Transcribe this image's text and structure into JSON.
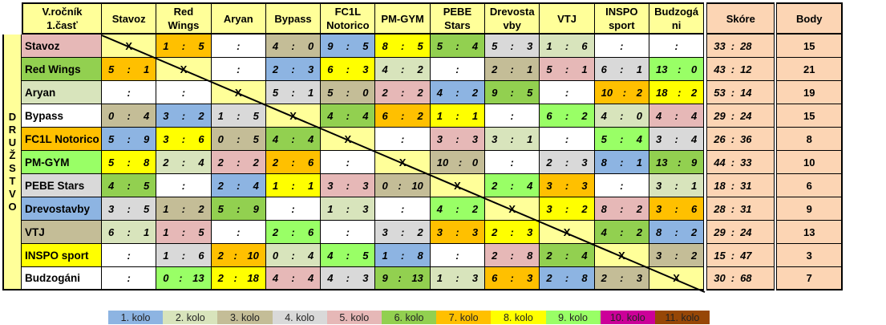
{
  "header": {
    "title_line1": "V.ročník",
    "title_line2": "1.časť",
    "columns": [
      [
        "Stavoz"
      ],
      [
        "Red",
        "Wings"
      ],
      [
        "Aryan"
      ],
      [
        "Bypass"
      ],
      [
        "FC1L",
        "Notorico"
      ],
      [
        "PM-GYM"
      ],
      [
        "PEBE",
        "Stars"
      ],
      [
        "Drevosta",
        "vby"
      ],
      [
        "VTJ"
      ],
      [
        "INSPO",
        "sport"
      ],
      [
        "Budzogá",
        "ni"
      ]
    ],
    "score_label": "Skóre",
    "points_label": "Body"
  },
  "side_label": [
    "D",
    "R",
    "U",
    "Ž",
    "S",
    "T",
    "V",
    "O"
  ],
  "diag_mark": "X",
  "colors": {
    "1": "#8DB4E2",
    "2": "#D8E4BC",
    "3": "#C4BD97",
    "4": "#D9D9D9",
    "5": "#E6B8B7",
    "6": "#92D050",
    "7": "#FFC000",
    "8": "#FFFF00",
    "9": "#99FF66",
    "10": "#CC0099",
    "11": "#974706",
    "none": "#FFFFFF"
  },
  "rows": [
    {
      "name": "Stavoz",
      "kolo": "5",
      "cells": [
        null,
        [
          "1",
          "5",
          "7"
        ],
        [],
        [
          "4",
          "0",
          "3"
        ],
        [
          "9",
          "5",
          "1"
        ],
        [
          "8",
          "5",
          "8"
        ],
        [
          "5",
          "4",
          "6"
        ],
        [
          "5",
          "3",
          "4"
        ],
        [
          "1",
          "6",
          "2"
        ],
        [],
        []
      ],
      "score": [
        "33",
        "28"
      ],
      "points": "15"
    },
    {
      "name": "Red Wings",
      "kolo": "6",
      "cells": [
        [
          "5",
          "1",
          "7"
        ],
        null,
        [],
        [
          "2",
          "3",
          "1"
        ],
        [
          "6",
          "3",
          "8"
        ],
        [
          "4",
          "2",
          "2"
        ],
        [],
        [
          "2",
          "1",
          "3"
        ],
        [
          "5",
          "1",
          "5"
        ],
        [
          "6",
          "1",
          "4"
        ],
        [
          "13",
          "0",
          "9"
        ]
      ],
      "score": [
        "43",
        "12"
      ],
      "points": "21"
    },
    {
      "name": "Aryan",
      "kolo": "2",
      "cells": [
        [],
        [],
        null,
        [
          "5",
          "1",
          "4"
        ],
        [
          "5",
          "0",
          "3"
        ],
        [
          "2",
          "2",
          "5"
        ],
        [
          "4",
          "2",
          "1"
        ],
        [
          "9",
          "5",
          "6"
        ],
        [],
        [
          "10",
          "2",
          "7"
        ],
        [
          "18",
          "2",
          "8"
        ]
      ],
      "score": [
        "53",
        "14"
      ],
      "points": "19"
    },
    {
      "name": "Bypass",
      "kolo": "none",
      "cells": [
        [
          "0",
          "4",
          "3"
        ],
        [
          "3",
          "2",
          "1"
        ],
        [
          "1",
          "5",
          "4"
        ],
        null,
        [
          "4",
          "4",
          "6"
        ],
        [
          "6",
          "2",
          "7"
        ],
        [
          "1",
          "1",
          "8"
        ],
        [],
        [
          "6",
          "2",
          "9"
        ],
        [
          "4",
          "0",
          "2"
        ],
        [
          "4",
          "4",
          "5"
        ]
      ],
      "score": [
        "29",
        "24"
      ],
      "points": "15"
    },
    {
      "name": "FC1L Notorico",
      "kolo": "7",
      "cells": [
        [
          "5",
          "9",
          "1"
        ],
        [
          "3",
          "6",
          "8"
        ],
        [
          "0",
          "5",
          "3"
        ],
        [
          "4",
          "4",
          "6"
        ],
        null,
        [],
        [
          "3",
          "3",
          "5"
        ],
        [
          "3",
          "1",
          "2"
        ],
        [],
        [
          "5",
          "4",
          "9"
        ],
        [
          "3",
          "4",
          "4"
        ]
      ],
      "score": [
        "26",
        "36"
      ],
      "points": "8"
    },
    {
      "name": "PM-GYM",
      "kolo": "9",
      "cells": [
        [
          "5",
          "8",
          "8"
        ],
        [
          "2",
          "4",
          "2"
        ],
        [
          "2",
          "2",
          "5"
        ],
        [
          "2",
          "6",
          "7"
        ],
        [],
        null,
        [
          "10",
          "0",
          "3"
        ],
        [],
        [
          "2",
          "3",
          "4"
        ],
        [
          "8",
          "1",
          "1"
        ],
        [
          "13",
          "9",
          "6"
        ]
      ],
      "score": [
        "44",
        "33"
      ],
      "points": "10"
    },
    {
      "name": "PEBE Stars",
      "kolo": "4",
      "cells": [
        [
          "4",
          "5",
          "6"
        ],
        [],
        [
          "2",
          "4",
          "1"
        ],
        [
          "1",
          "1",
          "8"
        ],
        [
          "3",
          "3",
          "5"
        ],
        [
          "0",
          "10",
          "3"
        ],
        null,
        [
          "2",
          "4",
          "9"
        ],
        [
          "3",
          "3",
          "7"
        ],
        [],
        [
          "3",
          "1",
          "2"
        ]
      ],
      "score": [
        "18",
        "31"
      ],
      "points": "6"
    },
    {
      "name": "Drevostavby",
      "kolo": "1",
      "cells": [
        [
          "3",
          "5",
          "4"
        ],
        [
          "1",
          "2",
          "3"
        ],
        [
          "5",
          "9",
          "6"
        ],
        [],
        [
          "1",
          "3",
          "2"
        ],
        [],
        [
          "4",
          "2",
          "9"
        ],
        null,
        [
          "3",
          "2",
          "8"
        ],
        [
          "8",
          "2",
          "5"
        ],
        [
          "3",
          "6",
          "7"
        ]
      ],
      "score": [
        "28",
        "31"
      ],
      "points": "9"
    },
    {
      "name": "VTJ",
      "kolo": "3",
      "cells": [
        [
          "6",
          "1",
          "2"
        ],
        [
          "1",
          "5",
          "5"
        ],
        [],
        [
          "2",
          "6",
          "9"
        ],
        [],
        [
          "3",
          "2",
          "4"
        ],
        [
          "3",
          "3",
          "7"
        ],
        [
          "2",
          "3",
          "8"
        ],
        null,
        [
          "4",
          "2",
          "6"
        ],
        [
          "8",
          "2",
          "1"
        ]
      ],
      "score": [
        "29",
        "24"
      ],
      "points": "13"
    },
    {
      "name": "INSPO sport",
      "kolo": "8",
      "cells": [
        [],
        [
          "1",
          "6",
          "4"
        ],
        [
          "2",
          "10",
          "7"
        ],
        [
          "0",
          "4",
          "2"
        ],
        [
          "4",
          "5",
          "9"
        ],
        [
          "1",
          "8",
          "1"
        ],
        [],
        [
          "2",
          "8",
          "5"
        ],
        [
          "2",
          "4",
          "6"
        ],
        null,
        [
          "3",
          "2",
          "3"
        ]
      ],
      "score": [
        "15",
        "47"
      ],
      "points": "3"
    },
    {
      "name": "Budzogáni",
      "kolo": "none",
      "cells": [
        [],
        [
          "0",
          "13",
          "9"
        ],
        [
          "2",
          "18",
          "8"
        ],
        [
          "4",
          "4",
          "5"
        ],
        [
          "4",
          "3",
          "4"
        ],
        [
          "9",
          "13",
          "6"
        ],
        [
          "1",
          "3",
          "2"
        ],
        [
          "6",
          "3",
          "7"
        ],
        [
          "2",
          "8",
          "1"
        ],
        [
          "2",
          "3",
          "3"
        ],
        null
      ],
      "score": [
        "30",
        "68"
      ],
      "points": "7"
    }
  ],
  "legend": [
    "1. kolo",
    "2. kolo",
    "3. kolo",
    "4. kolo",
    "5. kolo",
    "6. kolo",
    "7. kolo",
    "8. kolo",
    "9. kolo",
    "10. kolo",
    "11. kolo"
  ]
}
